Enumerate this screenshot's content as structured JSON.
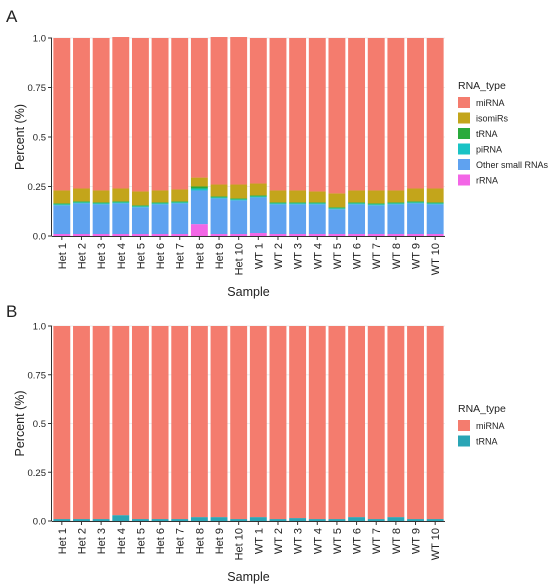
{
  "chart_data": [
    {
      "panel_label": "A",
      "type": "bar",
      "stacked": true,
      "xlabel": "Sample",
      "ylabel": "Percent (%)",
      "ylim": [
        0,
        1
      ],
      "yticks": [
        "0.0",
        "0.25",
        "0.5",
        "0.75",
        "1.0"
      ],
      "legend_title": "RNA_type",
      "legend_position": "right",
      "categories": [
        "Het 1",
        "Het 2",
        "Het 3",
        "Het 4",
        "Het 5",
        "Het 6",
        "Het 7",
        "Het 8",
        "Het 9",
        "Het 10",
        "WT 1",
        "WT 2",
        "WT 3",
        "WT 4",
        "WT 5",
        "WT 6",
        "WT 7",
        "WT 8",
        "WT 9",
        "WT 10"
      ],
      "series": [
        {
          "name": "rRNA",
          "color": "#f366e6",
          "values": [
            0.01,
            0.01,
            0.01,
            0.01,
            0.01,
            0.01,
            0.01,
            0.06,
            0.01,
            0.01,
            0.015,
            0.01,
            0.01,
            0.01,
            0.01,
            0.01,
            0.01,
            0.01,
            0.01,
            0.01
          ]
        },
        {
          "name": "Other small RNAs",
          "color": "#5fa2f0",
          "values": [
            0.145,
            0.155,
            0.15,
            0.155,
            0.135,
            0.15,
            0.155,
            0.17,
            0.18,
            0.17,
            0.18,
            0.15,
            0.15,
            0.15,
            0.125,
            0.15,
            0.145,
            0.15,
            0.155,
            0.15
          ]
        },
        {
          "name": "piRNA",
          "color": "#19c3c5",
          "values": [
            0.005,
            0.005,
            0.005,
            0.005,
            0.005,
            0.005,
            0.005,
            0.01,
            0.005,
            0.005,
            0.005,
            0.005,
            0.005,
            0.005,
            0.005,
            0.005,
            0.005,
            0.005,
            0.005,
            0.005
          ]
        },
        {
          "name": "tRNA",
          "color": "#2aaa3c",
          "values": [
            0.005,
            0.005,
            0.005,
            0.005,
            0.005,
            0.005,
            0.005,
            0.01,
            0.005,
            0.005,
            0.005,
            0.005,
            0.005,
            0.005,
            0.005,
            0.005,
            0.005,
            0.005,
            0.005,
            0.005
          ]
        },
        {
          "name": "isomiRs",
          "color": "#c3a51b",
          "values": [
            0.065,
            0.065,
            0.06,
            0.065,
            0.07,
            0.06,
            0.06,
            0.045,
            0.06,
            0.07,
            0.06,
            0.06,
            0.06,
            0.055,
            0.07,
            0.06,
            0.065,
            0.06,
            0.065,
            0.07
          ]
        },
        {
          "name": "miRNA",
          "color": "#f47c6e",
          "values": [
            0.77,
            0.76,
            0.77,
            0.765,
            0.775,
            0.77,
            0.765,
            0.705,
            0.745,
            0.745,
            0.735,
            0.77,
            0.77,
            0.775,
            0.785,
            0.77,
            0.77,
            0.77,
            0.76,
            0.76
          ]
        }
      ]
    },
    {
      "panel_label": "B",
      "type": "bar",
      "stacked": true,
      "xlabel": "Sample",
      "ylabel": "Percent (%)",
      "ylim": [
        0,
        1
      ],
      "yticks": [
        "0.0",
        "0.25",
        "0.5",
        "0.75",
        "1.0"
      ],
      "legend_title": "RNA_type",
      "legend_position": "right",
      "categories": [
        "Het 1",
        "Het 2",
        "Het 3",
        "Het 4",
        "Het 5",
        "Het 6",
        "Het 7",
        "Het 8",
        "Het 9",
        "Het 10",
        "WT 1",
        "WT 2",
        "WT 3",
        "WT 4",
        "WT 5",
        "WT 6",
        "WT 7",
        "WT 8",
        "WT 9",
        "WT 10"
      ],
      "series": [
        {
          "name": "tRNA",
          "color": "#2aa5b5",
          "values": [
            0.01,
            0.01,
            0.01,
            0.03,
            0.01,
            0.01,
            0.01,
            0.02,
            0.02,
            0.01,
            0.02,
            0.01,
            0.015,
            0.01,
            0.01,
            0.02,
            0.01,
            0.02,
            0.01,
            0.01
          ]
        },
        {
          "name": "miRNA",
          "color": "#f47c6e",
          "values": [
            0.99,
            0.99,
            0.99,
            0.97,
            0.99,
            0.99,
            0.99,
            0.98,
            0.98,
            0.99,
            0.98,
            0.99,
            0.985,
            0.99,
            0.99,
            0.98,
            0.99,
            0.98,
            0.99,
            0.99
          ]
        }
      ]
    }
  ]
}
